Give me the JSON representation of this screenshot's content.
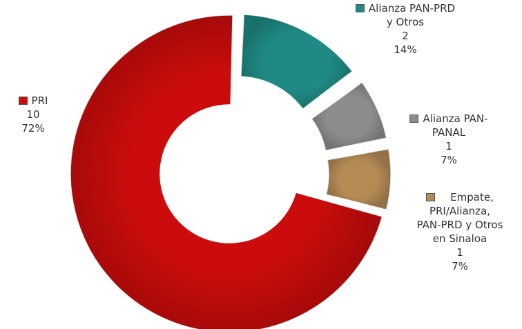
{
  "chart_data": {
    "type": "pie",
    "donut": true,
    "title": "",
    "legend": "labels beside slices",
    "slices": [
      {
        "name": "PRI",
        "value": 10,
        "percent": "72%",
        "color": "#cc0c0c",
        "name_lines": [
          "PRI"
        ]
      },
      {
        "name": "Alianza PAN-PRD y Otros",
        "value": 2,
        "percent": "14%",
        "color": "#1f8a83",
        "name_lines": [
          "Alianza PAN-PRD",
          "y Otros"
        ]
      },
      {
        "name": "Alianza PAN-PANAL",
        "value": 1,
        "percent": "7%",
        "color": "#8c8c8c",
        "name_lines": [
          "Alianza PAN-",
          "PANAL"
        ]
      },
      {
        "name": "Empate, PRI/Alianza, PAN-PRD y Otros en Sinaloa",
        "value": 1,
        "percent": "7%",
        "color": "#b48a55",
        "name_lines": [
          "Empate,",
          "PRI/Alianza,",
          "PAN-PRD y Otros",
          "en Sinaloa"
        ]
      }
    ]
  }
}
